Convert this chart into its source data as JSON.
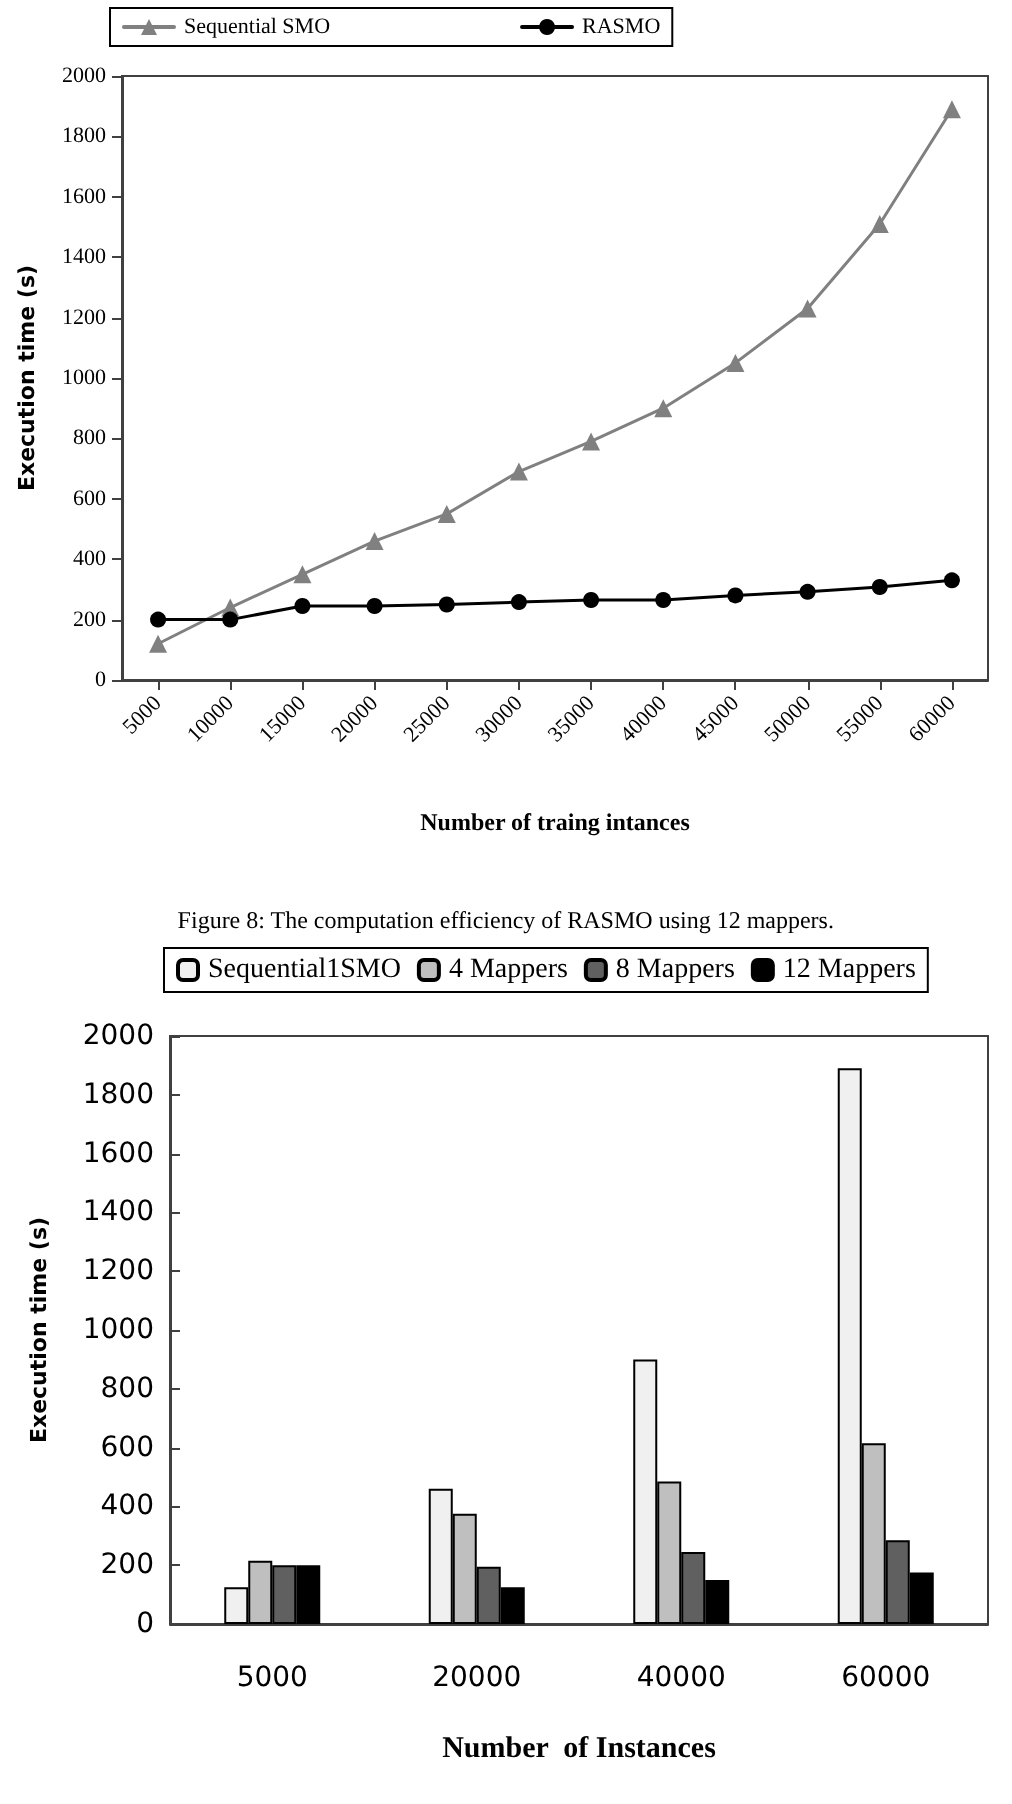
{
  "chart_data": [
    {
      "type": "line",
      "xlabel": "Number of traing intances",
      "ylabel": "Execution time (s)",
      "categories": [
        "5000",
        "10000",
        "15000",
        "20000",
        "25000",
        "30000",
        "35000",
        "40000",
        "45000",
        "50000",
        "55000",
        "60000"
      ],
      "series": [
        {
          "name": "Sequential SMO",
          "color": "#808080",
          "marker": "triangle",
          "values": [
            120,
            240,
            350,
            460,
            550,
            690,
            790,
            900,
            1050,
            1230,
            1510,
            1890
          ]
        },
        {
          "name": "RASMO",
          "color": "#000000",
          "marker": "circle",
          "values": [
            200,
            200,
            245,
            245,
            250,
            258,
            265,
            265,
            280,
            292,
            308,
            330
          ]
        }
      ],
      "ylim": [
        0,
        2000
      ],
      "yticks": [
        0,
        200,
        400,
        600,
        800,
        1000,
        1200,
        1400,
        1600,
        1800,
        2000
      ],
      "grid": false,
      "legend": "top",
      "line_style": "solid",
      "annotations": [
        "Figure 8: The computation efficiency of RASMO using 12 mappers."
      ]
    },
    {
      "type": "bar",
      "xlabel": "Number  of Instances",
      "ylabel": "Execution time (s)",
      "categories": [
        "5000",
        "20000",
        "40000",
        "60000"
      ],
      "series": [
        {
          "name": "Sequential1SMO",
          "color": "#f0f0f0",
          "values": [
            125,
            460,
            900,
            1890
          ]
        },
        {
          "name": "4 Mappers",
          "color": "#bfbfbf",
          "values": [
            215,
            375,
            485,
            615
          ]
        },
        {
          "name": "8 Mappers",
          "color": "#606060",
          "values": [
            200,
            195,
            245,
            285
          ]
        },
        {
          "name": "12 Mappers",
          "color": "#000000",
          "values": [
            200,
            125,
            150,
            175
          ]
        }
      ],
      "ylim": [
        0,
        2000
      ],
      "yticks": [
        0,
        200,
        400,
        600,
        800,
        1000,
        1200,
        1400,
        1600,
        1800,
        2000
      ],
      "grid": false,
      "legend": "top"
    }
  ]
}
